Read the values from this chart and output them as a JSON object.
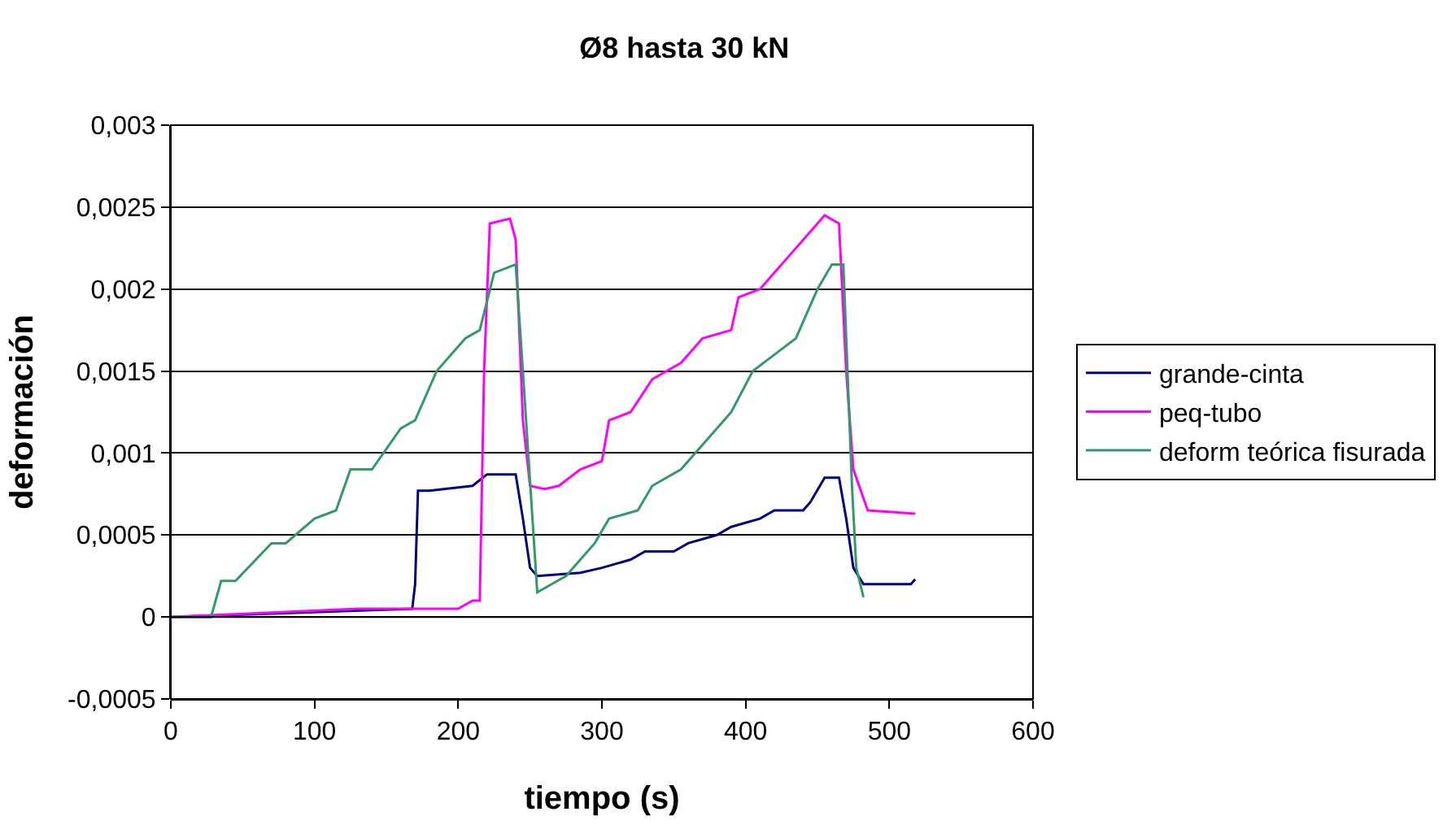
{
  "chart_data": {
    "type": "line",
    "title": "Ø8 hasta 30 kN",
    "xlabel": "tiempo (s)",
    "ylabel": "deformación",
    "xlim": [
      0,
      600
    ],
    "xticks": [
      0,
      100,
      200,
      300,
      400,
      500,
      600
    ],
    "ylim": [
      -0.0005,
      0.003
    ],
    "yticks": [
      {
        "value": -0.0005,
        "label": "-0,0005"
      },
      {
        "value": 0,
        "label": "0"
      },
      {
        "value": 0.0005,
        "label": "0,0005"
      },
      {
        "value": 0.001,
        "label": "0,001"
      },
      {
        "value": 0.0015,
        "label": "0,0015"
      },
      {
        "value": 0.002,
        "label": "0,002"
      },
      {
        "value": 0.0025,
        "label": "0,0025"
      },
      {
        "value": 0.003,
        "label": "0,003"
      }
    ],
    "grid": "y",
    "legend": "right",
    "marker": "none",
    "line_style": "solid",
    "series": [
      {
        "name": "grande-cinta",
        "color": "#000080",
        "x": [
          0,
          168,
          170,
          172,
          180,
          200,
          210,
          220,
          240,
          245,
          250,
          255,
          285,
          300,
          320,
          330,
          350,
          360,
          380,
          390,
          410,
          420,
          440,
          445,
          455,
          465,
          470,
          475,
          482,
          515,
          518
        ],
        "values": [
          0,
          5e-05,
          0.0002,
          0.00077,
          0.00077,
          0.00079,
          0.0008,
          0.00087,
          0.00087,
          0.0006,
          0.0003,
          0.00025,
          0.00027,
          0.0003,
          0.00035,
          0.0004,
          0.0004,
          0.00045,
          0.0005,
          0.00055,
          0.0006,
          0.00065,
          0.00065,
          0.0007,
          0.00085,
          0.00085,
          0.0006,
          0.0003,
          0.0002,
          0.0002,
          0.00023
        ]
      },
      {
        "name": "peq-tubo",
        "color": "#ff00ff",
        "x": [
          0,
          130,
          200,
          210,
          215,
          218,
          222,
          236,
          240,
          245,
          250,
          260,
          270,
          285,
          300,
          305,
          320,
          335,
          355,
          370,
          390,
          395,
          410,
          420,
          430,
          455,
          465,
          470,
          475,
          485,
          518
        ],
        "values": [
          0,
          5e-05,
          5e-05,
          0.0001,
          0.0001,
          0.0015,
          0.0024,
          0.00243,
          0.0023,
          0.0012,
          0.0008,
          0.00078,
          0.0008,
          0.0009,
          0.00095,
          0.0012,
          0.00125,
          0.00145,
          0.00155,
          0.0017,
          0.00175,
          0.00195,
          0.002,
          0.0021,
          0.0022,
          0.00245,
          0.0024,
          0.0015,
          0.0009,
          0.00065,
          0.00063
        ]
      },
      {
        "name": "deform teórica fisurada",
        "color": "#339966",
        "x": [
          0,
          28,
          35,
          45,
          70,
          80,
          100,
          115,
          125,
          140,
          160,
          170,
          185,
          205,
          215,
          225,
          240,
          245,
          255,
          265,
          275,
          285,
          295,
          305,
          325,
          335,
          355,
          375,
          390,
          405,
          420,
          435,
          450,
          460,
          468,
          474,
          477,
          482
        ],
        "values": [
          0,
          0,
          0.00022,
          0.00022,
          0.00045,
          0.00045,
          0.0006,
          0.00065,
          0.0009,
          0.0009,
          0.00115,
          0.0012,
          0.0015,
          0.0017,
          0.00175,
          0.0021,
          0.00215,
          0.0015,
          0.00015,
          0.0002,
          0.00025,
          0.00035,
          0.00045,
          0.0006,
          0.00065,
          0.0008,
          0.0009,
          0.0011,
          0.00125,
          0.0015,
          0.0016,
          0.0017,
          0.002,
          0.00215,
          0.00215,
          0.0008,
          0.0003,
          0.00012
        ]
      }
    ]
  }
}
